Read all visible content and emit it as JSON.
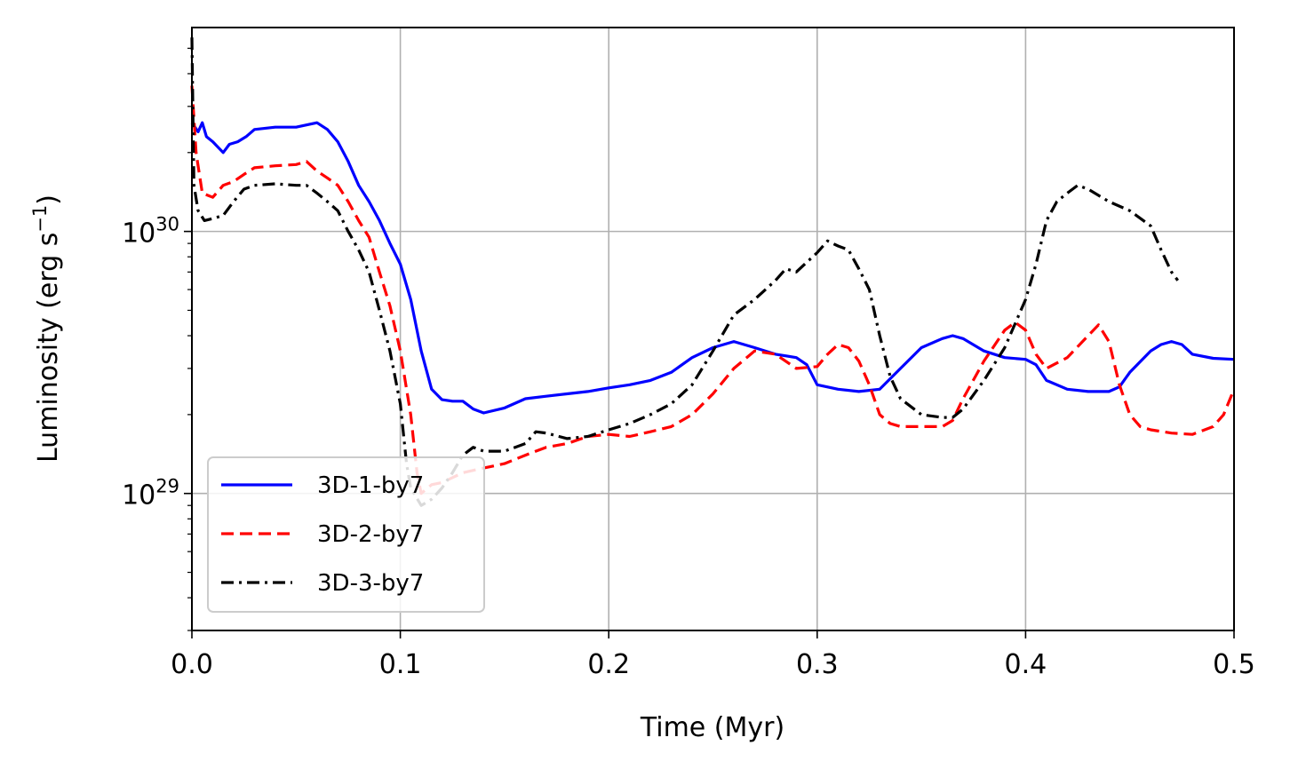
{
  "chart_data": {
    "type": "line",
    "xlabel": "Time (Myr)",
    "ylabel": "Luminosity (erg s",
    "ylabel_sup": "−1",
    "ylabel_suffix": ")",
    "xlim": [
      0.0,
      0.5
    ],
    "ylim": [
      3e+28,
      6e+30
    ],
    "yscale": "log",
    "grid": true,
    "legend_position": "lower-left",
    "x_ticks": [
      0.0,
      0.1,
      0.2,
      0.3,
      0.4,
      0.5
    ],
    "x_tick_labels": [
      "0.0",
      "0.1",
      "0.2",
      "0.3",
      "0.4",
      "0.5"
    ],
    "y_major_ticks": [
      1e+29,
      1e+30
    ],
    "y_tick_labels": [
      {
        "base": "10",
        "exp": "29"
      },
      {
        "base": "10",
        "exp": "30"
      }
    ],
    "series": [
      {
        "name": "3D-1-by7",
        "color": "#0000ff",
        "dash": "solid",
        "points": [
          [
            0.0,
            2.6e+30
          ],
          [
            0.003,
            2.4e+30
          ],
          [
            0.005,
            2.6e+30
          ],
          [
            0.007,
            2.3e+30
          ],
          [
            0.01,
            2.2e+30
          ],
          [
            0.015,
            2e+30
          ],
          [
            0.018,
            2.15e+30
          ],
          [
            0.022,
            2.2e+30
          ],
          [
            0.026,
            2.3e+30
          ],
          [
            0.03,
            2.45e+30
          ],
          [
            0.04,
            2.5e+30
          ],
          [
            0.05,
            2.5e+30
          ],
          [
            0.055,
            2.55e+30
          ],
          [
            0.06,
            2.6e+30
          ],
          [
            0.065,
            2.45e+30
          ],
          [
            0.07,
            2.2e+30
          ],
          [
            0.075,
            1.85e+30
          ],
          [
            0.08,
            1.5e+30
          ],
          [
            0.085,
            1.3e+30
          ],
          [
            0.09,
            1.1e+30
          ],
          [
            0.095,
            9e+29
          ],
          [
            0.1,
            7.5e+29
          ],
          [
            0.105,
            5.5e+29
          ],
          [
            0.11,
            3.5e+29
          ],
          [
            0.115,
            2.5e+29
          ],
          [
            0.12,
            2.28e+29
          ],
          [
            0.125,
            2.25e+29
          ],
          [
            0.13,
            2.25e+29
          ],
          [
            0.135,
            2.1e+29
          ],
          [
            0.14,
            2.03e+29
          ],
          [
            0.15,
            2.12e+29
          ],
          [
            0.16,
            2.3e+29
          ],
          [
            0.17,
            2.35e+29
          ],
          [
            0.18,
            2.4e+29
          ],
          [
            0.19,
            2.45e+29
          ],
          [
            0.2,
            2.53e+29
          ],
          [
            0.21,
            2.6e+29
          ],
          [
            0.22,
            2.7e+29
          ],
          [
            0.23,
            2.9e+29
          ],
          [
            0.24,
            3.3e+29
          ],
          [
            0.25,
            3.6e+29
          ],
          [
            0.26,
            3.8e+29
          ],
          [
            0.27,
            3.6e+29
          ],
          [
            0.28,
            3.4e+29
          ],
          [
            0.29,
            3.3e+29
          ],
          [
            0.295,
            3.1e+29
          ],
          [
            0.3,
            2.6e+29
          ],
          [
            0.31,
            2.5e+29
          ],
          [
            0.32,
            2.45e+29
          ],
          [
            0.33,
            2.5e+29
          ],
          [
            0.34,
            3e+29
          ],
          [
            0.35,
            3.6e+29
          ],
          [
            0.36,
            3.9e+29
          ],
          [
            0.365,
            4e+29
          ],
          [
            0.37,
            3.9e+29
          ],
          [
            0.38,
            3.5e+29
          ],
          [
            0.39,
            3.3e+29
          ],
          [
            0.4,
            3.25e+29
          ],
          [
            0.405,
            3.1e+29
          ],
          [
            0.41,
            2.7e+29
          ],
          [
            0.42,
            2.5e+29
          ],
          [
            0.43,
            2.45e+29
          ],
          [
            0.44,
            2.45e+29
          ],
          [
            0.445,
            2.55e+29
          ],
          [
            0.45,
            2.9e+29
          ],
          [
            0.46,
            3.5e+29
          ],
          [
            0.465,
            3.7e+29
          ],
          [
            0.47,
            3.8e+29
          ],
          [
            0.475,
            3.7e+29
          ],
          [
            0.48,
            3.4e+29
          ],
          [
            0.49,
            3.28e+29
          ],
          [
            0.5,
            3.25e+29
          ]
        ]
      },
      {
        "name": "3D-2-by7",
        "color": "#ff0000",
        "dash": "dashed",
        "points": [
          [
            0.0,
            3.6e+30
          ],
          [
            0.002,
            2e+30
          ],
          [
            0.005,
            1.4e+30
          ],
          [
            0.01,
            1.35e+30
          ],
          [
            0.015,
            1.5e+30
          ],
          [
            0.02,
            1.55e+30
          ],
          [
            0.025,
            1.65e+30
          ],
          [
            0.03,
            1.75e+30
          ],
          [
            0.04,
            1.78e+30
          ],
          [
            0.05,
            1.8e+30
          ],
          [
            0.055,
            1.85e+30
          ],
          [
            0.06,
            1.7e+30
          ],
          [
            0.065,
            1.6e+30
          ],
          [
            0.07,
            1.5e+30
          ],
          [
            0.075,
            1.3e+30
          ],
          [
            0.08,
            1.1e+30
          ],
          [
            0.085,
            9.5e+29
          ],
          [
            0.09,
            7e+29
          ],
          [
            0.095,
            5.2e+29
          ],
          [
            0.1,
            3.5e+29
          ],
          [
            0.105,
            2e+29
          ],
          [
            0.108,
            1.2e+29
          ],
          [
            0.11,
            1e+29
          ],
          [
            0.115,
            1.08e+29
          ],
          [
            0.12,
            1.1e+29
          ],
          [
            0.13,
            1.2e+29
          ],
          [
            0.14,
            1.25e+29
          ],
          [
            0.15,
            1.3e+29
          ],
          [
            0.16,
            1.4e+29
          ],
          [
            0.17,
            1.5e+29
          ],
          [
            0.18,
            1.55e+29
          ],
          [
            0.19,
            1.65e+29
          ],
          [
            0.2,
            1.68e+29
          ],
          [
            0.21,
            1.65e+29
          ],
          [
            0.22,
            1.72e+29
          ],
          [
            0.23,
            1.8e+29
          ],
          [
            0.24,
            2e+29
          ],
          [
            0.25,
            2.4e+29
          ],
          [
            0.26,
            3e+29
          ],
          [
            0.27,
            3.5e+29
          ],
          [
            0.28,
            3.4e+29
          ],
          [
            0.29,
            3e+29
          ],
          [
            0.3,
            3.05e+29
          ],
          [
            0.305,
            3.4e+29
          ],
          [
            0.31,
            3.7e+29
          ],
          [
            0.315,
            3.6e+29
          ],
          [
            0.32,
            3.2e+29
          ],
          [
            0.325,
            2.6e+29
          ],
          [
            0.33,
            2e+29
          ],
          [
            0.335,
            1.85e+29
          ],
          [
            0.34,
            1.8e+29
          ],
          [
            0.35,
            1.8e+29
          ],
          [
            0.36,
            1.8e+29
          ],
          [
            0.365,
            1.9e+29
          ],
          [
            0.37,
            2.3e+29
          ],
          [
            0.38,
            3.2e+29
          ],
          [
            0.39,
            4.2e+29
          ],
          [
            0.395,
            4.5e+29
          ],
          [
            0.4,
            4.2e+29
          ],
          [
            0.405,
            3.4e+29
          ],
          [
            0.41,
            3e+29
          ],
          [
            0.42,
            3.3e+29
          ],
          [
            0.43,
            4e+29
          ],
          [
            0.435,
            4.4e+29
          ],
          [
            0.44,
            3.8e+29
          ],
          [
            0.445,
            2.6e+29
          ],
          [
            0.45,
            2e+29
          ],
          [
            0.455,
            1.8e+29
          ],
          [
            0.46,
            1.75e+29
          ],
          [
            0.47,
            1.7e+29
          ],
          [
            0.48,
            1.68e+29
          ],
          [
            0.49,
            1.8e+29
          ],
          [
            0.495,
            2e+29
          ],
          [
            0.5,
            2.5e+29
          ]
        ]
      },
      {
        "name": "3D-3-by7",
        "color": "#000000",
        "dash": "dashdot",
        "points": [
          [
            0.0,
            5.5e+30
          ],
          [
            0.001,
            1.5e+30
          ],
          [
            0.003,
            1.2e+30
          ],
          [
            0.006,
            1.1e+30
          ],
          [
            0.01,
            1.12e+30
          ],
          [
            0.015,
            1.15e+30
          ],
          [
            0.02,
            1.3e+30
          ],
          [
            0.025,
            1.45e+30
          ],
          [
            0.03,
            1.5e+30
          ],
          [
            0.04,
            1.52e+30
          ],
          [
            0.05,
            1.5e+30
          ],
          [
            0.055,
            1.5e+30
          ],
          [
            0.06,
            1.4e+30
          ],
          [
            0.065,
            1.3e+30
          ],
          [
            0.07,
            1.2e+30
          ],
          [
            0.075,
            1e+30
          ],
          [
            0.08,
            8.5e+29
          ],
          [
            0.085,
            7e+29
          ],
          [
            0.09,
            5e+29
          ],
          [
            0.095,
            3.5e+29
          ],
          [
            0.1,
            2.2e+29
          ],
          [
            0.103,
            1.3e+29
          ],
          [
            0.105,
            1.05e+29
          ],
          [
            0.11,
            9e+28
          ],
          [
            0.115,
            9.5e+28
          ],
          [
            0.12,
            1.05e+29
          ],
          [
            0.125,
            1.2e+29
          ],
          [
            0.13,
            1.4e+29
          ],
          [
            0.135,
            1.5e+29
          ],
          [
            0.14,
            1.45e+29
          ],
          [
            0.15,
            1.45e+29
          ],
          [
            0.16,
            1.55e+29
          ],
          [
            0.165,
            1.72e+29
          ],
          [
            0.17,
            1.7e+29
          ],
          [
            0.18,
            1.62e+29
          ],
          [
            0.19,
            1.65e+29
          ],
          [
            0.2,
            1.75e+29
          ],
          [
            0.21,
            1.85e+29
          ],
          [
            0.22,
            2e+29
          ],
          [
            0.23,
            2.2e+29
          ],
          [
            0.24,
            2.6e+29
          ],
          [
            0.25,
            3.5e+29
          ],
          [
            0.26,
            4.8e+29
          ],
          [
            0.27,
            5.5e+29
          ],
          [
            0.28,
            6.5e+29
          ],
          [
            0.285,
            7.2e+29
          ],
          [
            0.29,
            7e+29
          ],
          [
            0.3,
            8.3e+29
          ],
          [
            0.305,
            9.2e+29
          ],
          [
            0.31,
            8.8e+29
          ],
          [
            0.315,
            8.5e+29
          ],
          [
            0.32,
            7.2e+29
          ],
          [
            0.325,
            6e+29
          ],
          [
            0.33,
            4e+29
          ],
          [
            0.335,
            2.8e+29
          ],
          [
            0.34,
            2.3e+29
          ],
          [
            0.35,
            2e+29
          ],
          [
            0.36,
            1.95e+29
          ],
          [
            0.365,
            1.95e+29
          ],
          [
            0.37,
            2.1e+29
          ],
          [
            0.38,
            2.7e+29
          ],
          [
            0.39,
            3.6e+29
          ],
          [
            0.4,
            5.5e+29
          ],
          [
            0.405,
            7.5e+29
          ],
          [
            0.41,
            1.1e+30
          ],
          [
            0.415,
            1.3e+30
          ],
          [
            0.42,
            1.4e+30
          ],
          [
            0.425,
            1.5e+30
          ],
          [
            0.43,
            1.45e+30
          ],
          [
            0.44,
            1.3e+30
          ],
          [
            0.45,
            1.2e+30
          ],
          [
            0.46,
            1.05e+30
          ],
          [
            0.465,
            8.5e+29
          ],
          [
            0.47,
            7e+29
          ],
          [
            0.473,
            6.5e+29
          ]
        ]
      }
    ]
  }
}
